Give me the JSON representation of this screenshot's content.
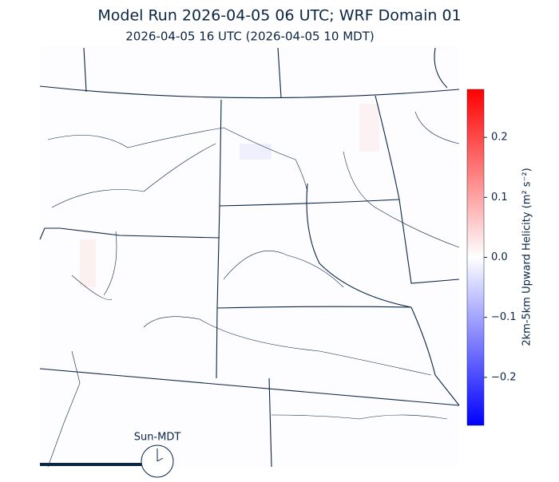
{
  "title": "Model Run 2026-04-05 06 UTC; WRF Domain 01",
  "subtitle": "2026-04-05 16 UTC  (2026-04-05 10 MDT)",
  "colorbar": {
    "label": "2km-5km Upward Helicity (m² s⁻²)",
    "lim": [
      -0.28,
      0.28
    ],
    "ticks": [
      {
        "value": -0.2,
        "label": "−0.2"
      },
      {
        "value": -0.1,
        "label": "−0.1"
      },
      {
        "value": 0,
        "label": "0.0"
      },
      0.1,
      0.2
    ]
  },
  "clock": {
    "label": "Sun-MDT"
  }
}
